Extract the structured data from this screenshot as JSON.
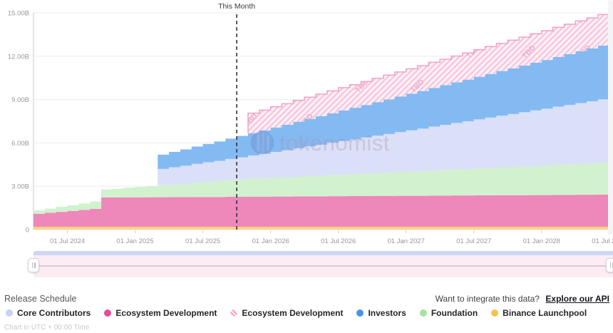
{
  "chart": {
    "this_month_label": "This Month"
  },
  "watermark": {
    "text": "tokenomist"
  },
  "footer": {
    "title": "Release Schedule",
    "api_prompt": "Want to integrate this data?",
    "api_link_label": "Explore our API",
    "timezone_note": "Chart in UTC + 00:00 Time"
  },
  "legend": {
    "items": [
      {
        "label": "Core Contributors",
        "swatch": "#c6d1f6",
        "type": "solid"
      },
      {
        "label": "Ecosystem Development",
        "swatch": "#e44d9b",
        "type": "solid"
      },
      {
        "label": "Ecosystem Development",
        "swatch": "#ef8ec2",
        "type": "striped"
      },
      {
        "label": "Investors",
        "swatch": "#4694e8",
        "type": "solid"
      },
      {
        "label": "Foundation",
        "swatch": "#a7e3a0",
        "type": "solid"
      },
      {
        "label": "Binance Launchpool",
        "swatch": "#f7c34c",
        "type": "solid"
      }
    ]
  },
  "chart_data": {
    "type": "area",
    "variant": "stacked-stepped",
    "title": "Release Schedule",
    "unit": "billions of tokens",
    "x_unit": "month",
    "x_range": [
      "Apr 2024",
      "Jul 2028"
    ],
    "x_tick_labels": [
      "01 Jul 2024",
      "01 Jan 2025",
      "01 Jul 2025",
      "01 Jan 2026",
      "01 Jul 2026",
      "01 Jan 2027",
      "01 Jul 2027",
      "01 Jan 2028",
      "01 Jul 2028"
    ],
    "x_tick_month_indices": [
      3,
      9,
      15,
      21,
      27,
      33,
      39,
      45,
      51
    ],
    "y_tick_labels": [
      "0",
      "3.00B",
      "6.00B",
      "9.00B",
      "12.00B",
      "15.00B"
    ],
    "y_tick_values": [
      0,
      3,
      6,
      9,
      12,
      15
    ],
    "ylim": [
      0,
      15
    ],
    "grid": true,
    "legend_position": "bottom",
    "this_month_index": 18,
    "tbd_watermark_label": "TBD",
    "series": [
      {
        "name": "Binance Launchpool",
        "color": "#fbd285",
        "style": "solid",
        "values": [
          0.2,
          0.2,
          0.2,
          0.2,
          0.2,
          0.2,
          0.2,
          0.2,
          0.2,
          0.2,
          0.2,
          0.2,
          0.2,
          0.2,
          0.2,
          0.2,
          0.2,
          0.2,
          0.2,
          0.2,
          0.2,
          0.2,
          0.2,
          0.2,
          0.2,
          0.2,
          0.2,
          0.2,
          0.2,
          0.2,
          0.2,
          0.2,
          0.2,
          0.2,
          0.2,
          0.2,
          0.2,
          0.2,
          0.2,
          0.2,
          0.2,
          0.2,
          0.2,
          0.2,
          0.2,
          0.2,
          0.2,
          0.2,
          0.2,
          0.2,
          0.2,
          0.2
        ]
      },
      {
        "name": "Ecosystem Development",
        "color": "#ee87ba",
        "style": "solid",
        "values": [
          0.89,
          0.96,
          1.03,
          1.09,
          1.16,
          1.23,
          2.02,
          2.02,
          2.03,
          2.03,
          2.04,
          2.04,
          2.05,
          2.05,
          2.06,
          2.06,
          2.06,
          2.07,
          2.07,
          2.08,
          2.08,
          2.09,
          2.09,
          2.1,
          2.1,
          2.1,
          2.11,
          2.11,
          2.12,
          2.12,
          2.13,
          2.13,
          2.14,
          2.14,
          2.14,
          2.15,
          2.15,
          2.16,
          2.16,
          2.17,
          2.17,
          2.18,
          2.18,
          2.18,
          2.19,
          2.19,
          2.2,
          2.2,
          2.21,
          2.21,
          2.22,
          2.22
        ]
      },
      {
        "name": "Foundation",
        "color": "#d2f1cf",
        "style": "solid",
        "values": [
          0.24,
          0.29,
          0.35,
          0.4,
          0.45,
          0.51,
          0.56,
          0.61,
          0.67,
          0.72,
          0.77,
          0.83,
          0.88,
          0.93,
          0.99,
          1.04,
          1.09,
          1.15,
          1.2,
          1.23,
          1.26,
          1.29,
          1.32,
          1.35,
          1.39,
          1.42,
          1.45,
          1.48,
          1.51,
          1.54,
          1.57,
          1.6,
          1.63,
          1.66,
          1.69,
          1.73,
          1.76,
          1.79,
          1.82,
          1.85,
          1.88,
          1.91,
          1.94,
          1.97,
          2.0,
          2.03,
          2.07,
          2.1,
          2.13,
          2.16,
          2.19,
          2.22
        ]
      },
      {
        "name": "Core Contributors",
        "color": "#d9e0f7",
        "style": "solid",
        "values": [
          0,
          0,
          0,
          0,
          0,
          0,
          0,
          0,
          0,
          0,
          0,
          1.13,
          1.19,
          1.24,
          1.3,
          1.36,
          1.41,
          1.47,
          1.53,
          1.62,
          1.71,
          1.8,
          1.89,
          1.98,
          2.07,
          2.16,
          2.25,
          2.34,
          2.42,
          2.51,
          2.6,
          2.69,
          2.78,
          2.87,
          2.96,
          3.05,
          3.14,
          3.23,
          3.32,
          3.41,
          3.5,
          3.59,
          3.68,
          3.77,
          3.86,
          3.95,
          4.04,
          4.13,
          4.22,
          4.31,
          4.4,
          4.49
        ]
      },
      {
        "name": "Investors",
        "color": "#84baf2",
        "style": "solid",
        "values": [
          0,
          0,
          0,
          0,
          0,
          0,
          0,
          0,
          0,
          0,
          0,
          0.99,
          1.06,
          1.13,
          1.2,
          1.27,
          1.34,
          1.41,
          1.48,
          1.55,
          1.62,
          1.69,
          1.76,
          1.83,
          1.9,
          1.97,
          2.04,
          2.11,
          2.18,
          2.25,
          2.32,
          2.39,
          2.46,
          2.53,
          2.6,
          2.67,
          2.74,
          2.81,
          2.88,
          2.95,
          3.02,
          3.09,
          3.16,
          3.23,
          3.3,
          3.37,
          3.44,
          3.51,
          3.58,
          3.65,
          3.72,
          3.79
        ]
      },
      {
        "name": "Ecosystem Development (TBD)",
        "color": "#fdf1f7",
        "style": "striped",
        "stripe_color": "#f7c6dd",
        "border_color": "#f09cc6",
        "values": [
          0,
          0,
          0,
          0,
          0,
          0,
          0,
          0,
          0,
          0,
          0,
          0,
          0,
          0,
          0,
          0,
          0,
          0,
          0,
          1.38,
          1.4,
          1.43,
          1.45,
          1.48,
          1.5,
          1.53,
          1.55,
          1.58,
          1.6,
          1.63,
          1.65,
          1.68,
          1.7,
          1.73,
          1.75,
          1.78,
          1.8,
          1.82,
          1.85,
          1.87,
          1.9,
          1.92,
          1.95,
          1.97,
          2.0,
          2.02,
          2.05,
          2.07,
          2.1,
          2.12,
          2.15,
          2.17
        ]
      }
    ]
  }
}
